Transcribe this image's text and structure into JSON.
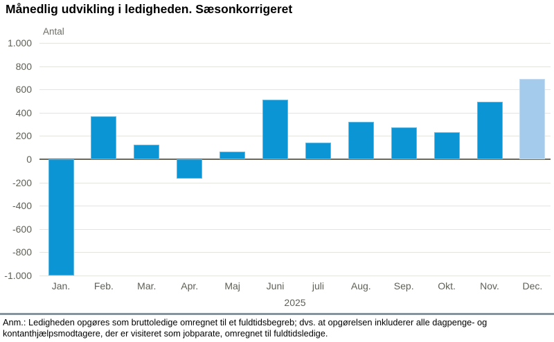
{
  "header": {
    "title": "Månedlig udvikling i ledigheden. Sæsonkorrigeret"
  },
  "chart_data": {
    "type": "bar",
    "title": "Månedlig udvikling i ledigheden. Sæsonkorrigeret",
    "unit_label": "Antal",
    "xlabel": "2025",
    "ylabel": "Antal",
    "categories": [
      "Jan.",
      "Feb.",
      "Mar.",
      "Apr.",
      "Maj",
      "Juni",
      "juli",
      "Aug.",
      "Sep.",
      "Okt.",
      "Nov.",
      "Dec."
    ],
    "values": [
      -1000,
      370,
      125,
      -165,
      65,
      510,
      140,
      320,
      275,
      235,
      495,
      690
    ],
    "ylim": [
      -1000,
      1000
    ],
    "ytick_step": 200,
    "ytick_labels": [
      "1.000",
      "800",
      "600",
      "400",
      "200",
      "0",
      "-200",
      "-400",
      "-600",
      "-800",
      "-1.000"
    ],
    "grid": true,
    "legend": "none",
    "bar_color": "#0b95d5",
    "highlight_color": "#a4caec",
    "highlight_index": 11
  },
  "footer": {
    "note": "Anm.: Ledigheden opgøres som bruttoledige omregnet til et fuldtidsbegreb; dvs. at opgørelsen inkluderer alle dagpenge- og kontanthjælpsmodtagere, der er visiteret som jobparate, omregnet til fuldtidsledige."
  }
}
